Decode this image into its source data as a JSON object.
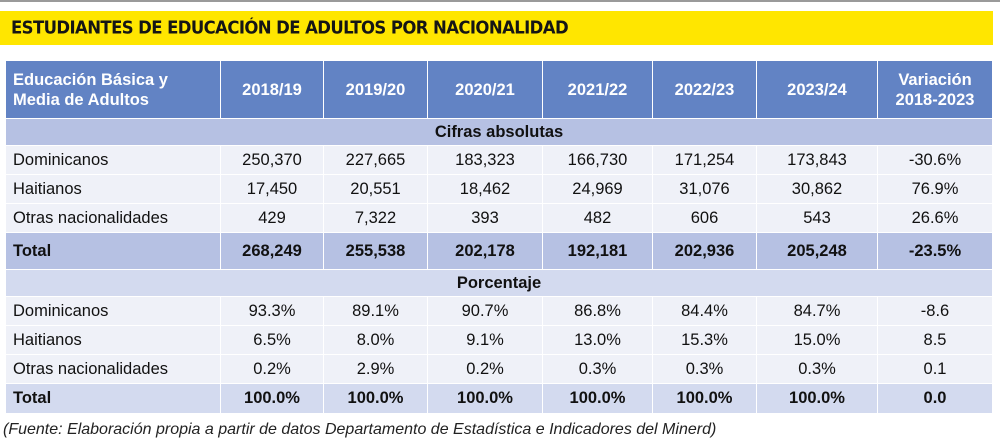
{
  "title": "ESTUDIANTES DE EDUCACIÓN DE ADULTOS POR NACIONALIDAD",
  "colors": {
    "title_bar": "#ffe600",
    "header": "#6283c4",
    "section_abs": "#b6c1e3",
    "section_pct": "#d3daef",
    "row": "#eff1f8"
  },
  "table": {
    "header": {
      "label_line1": "Educación Básica y",
      "label_line2": "Media de Adultos",
      "years": [
        "2018/19",
        "2019/20",
        "2020/21",
        "2021/22",
        "2022/23",
        "2023/24"
      ],
      "variation_line1": "Variación",
      "variation_line2": "2018-2023"
    },
    "absolute": {
      "section_label": "Cifras absolutas",
      "rows": [
        {
          "label": "Dominicanos",
          "values": [
            "250,370",
            "227,665",
            "183,323",
            "166,730",
            "171,254",
            "173,843",
            "-30.6%"
          ]
        },
        {
          "label": "Haitianos",
          "values": [
            "17,450",
            "20,551",
            "18,462",
            "24,969",
            "31,076",
            "30,862",
            "76.9%"
          ]
        },
        {
          "label": "Otras nacionalidades",
          "values": [
            "429",
            "7,322",
            "393",
            "482",
            "606",
            "543",
            "26.6%"
          ]
        }
      ],
      "total": {
        "label": "Total",
        "values": [
          "268,249",
          "255,538",
          "202,178",
          "192,181",
          "202,936",
          "205,248",
          "-23.5%"
        ]
      }
    },
    "percentage": {
      "section_label": "Porcentaje",
      "rows": [
        {
          "label": "Dominicanos",
          "values": [
            "93.3%",
            "89.1%",
            "90.7%",
            "86.8%",
            "84.4%",
            "84.7%",
            "-8.6"
          ]
        },
        {
          "label": "Haitianos",
          "values": [
            "6.5%",
            "8.0%",
            "9.1%",
            "13.0%",
            "15.3%",
            "15.0%",
            "8.5"
          ]
        },
        {
          "label": "Otras nacionalidades",
          "values": [
            "0.2%",
            "2.9%",
            "0.2%",
            "0.3%",
            "0.3%",
            "0.3%",
            "0.1"
          ]
        }
      ],
      "total": {
        "label": "Total",
        "values": [
          "100.0%",
          "100.0%",
          "100.0%",
          "100.0%",
          "100.0%",
          "100.0%",
          "0.0"
        ]
      }
    }
  },
  "source": "(Fuente: Elaboración propia a partir de datos Departamento de Estadística e Indicadores del Minerd)"
}
